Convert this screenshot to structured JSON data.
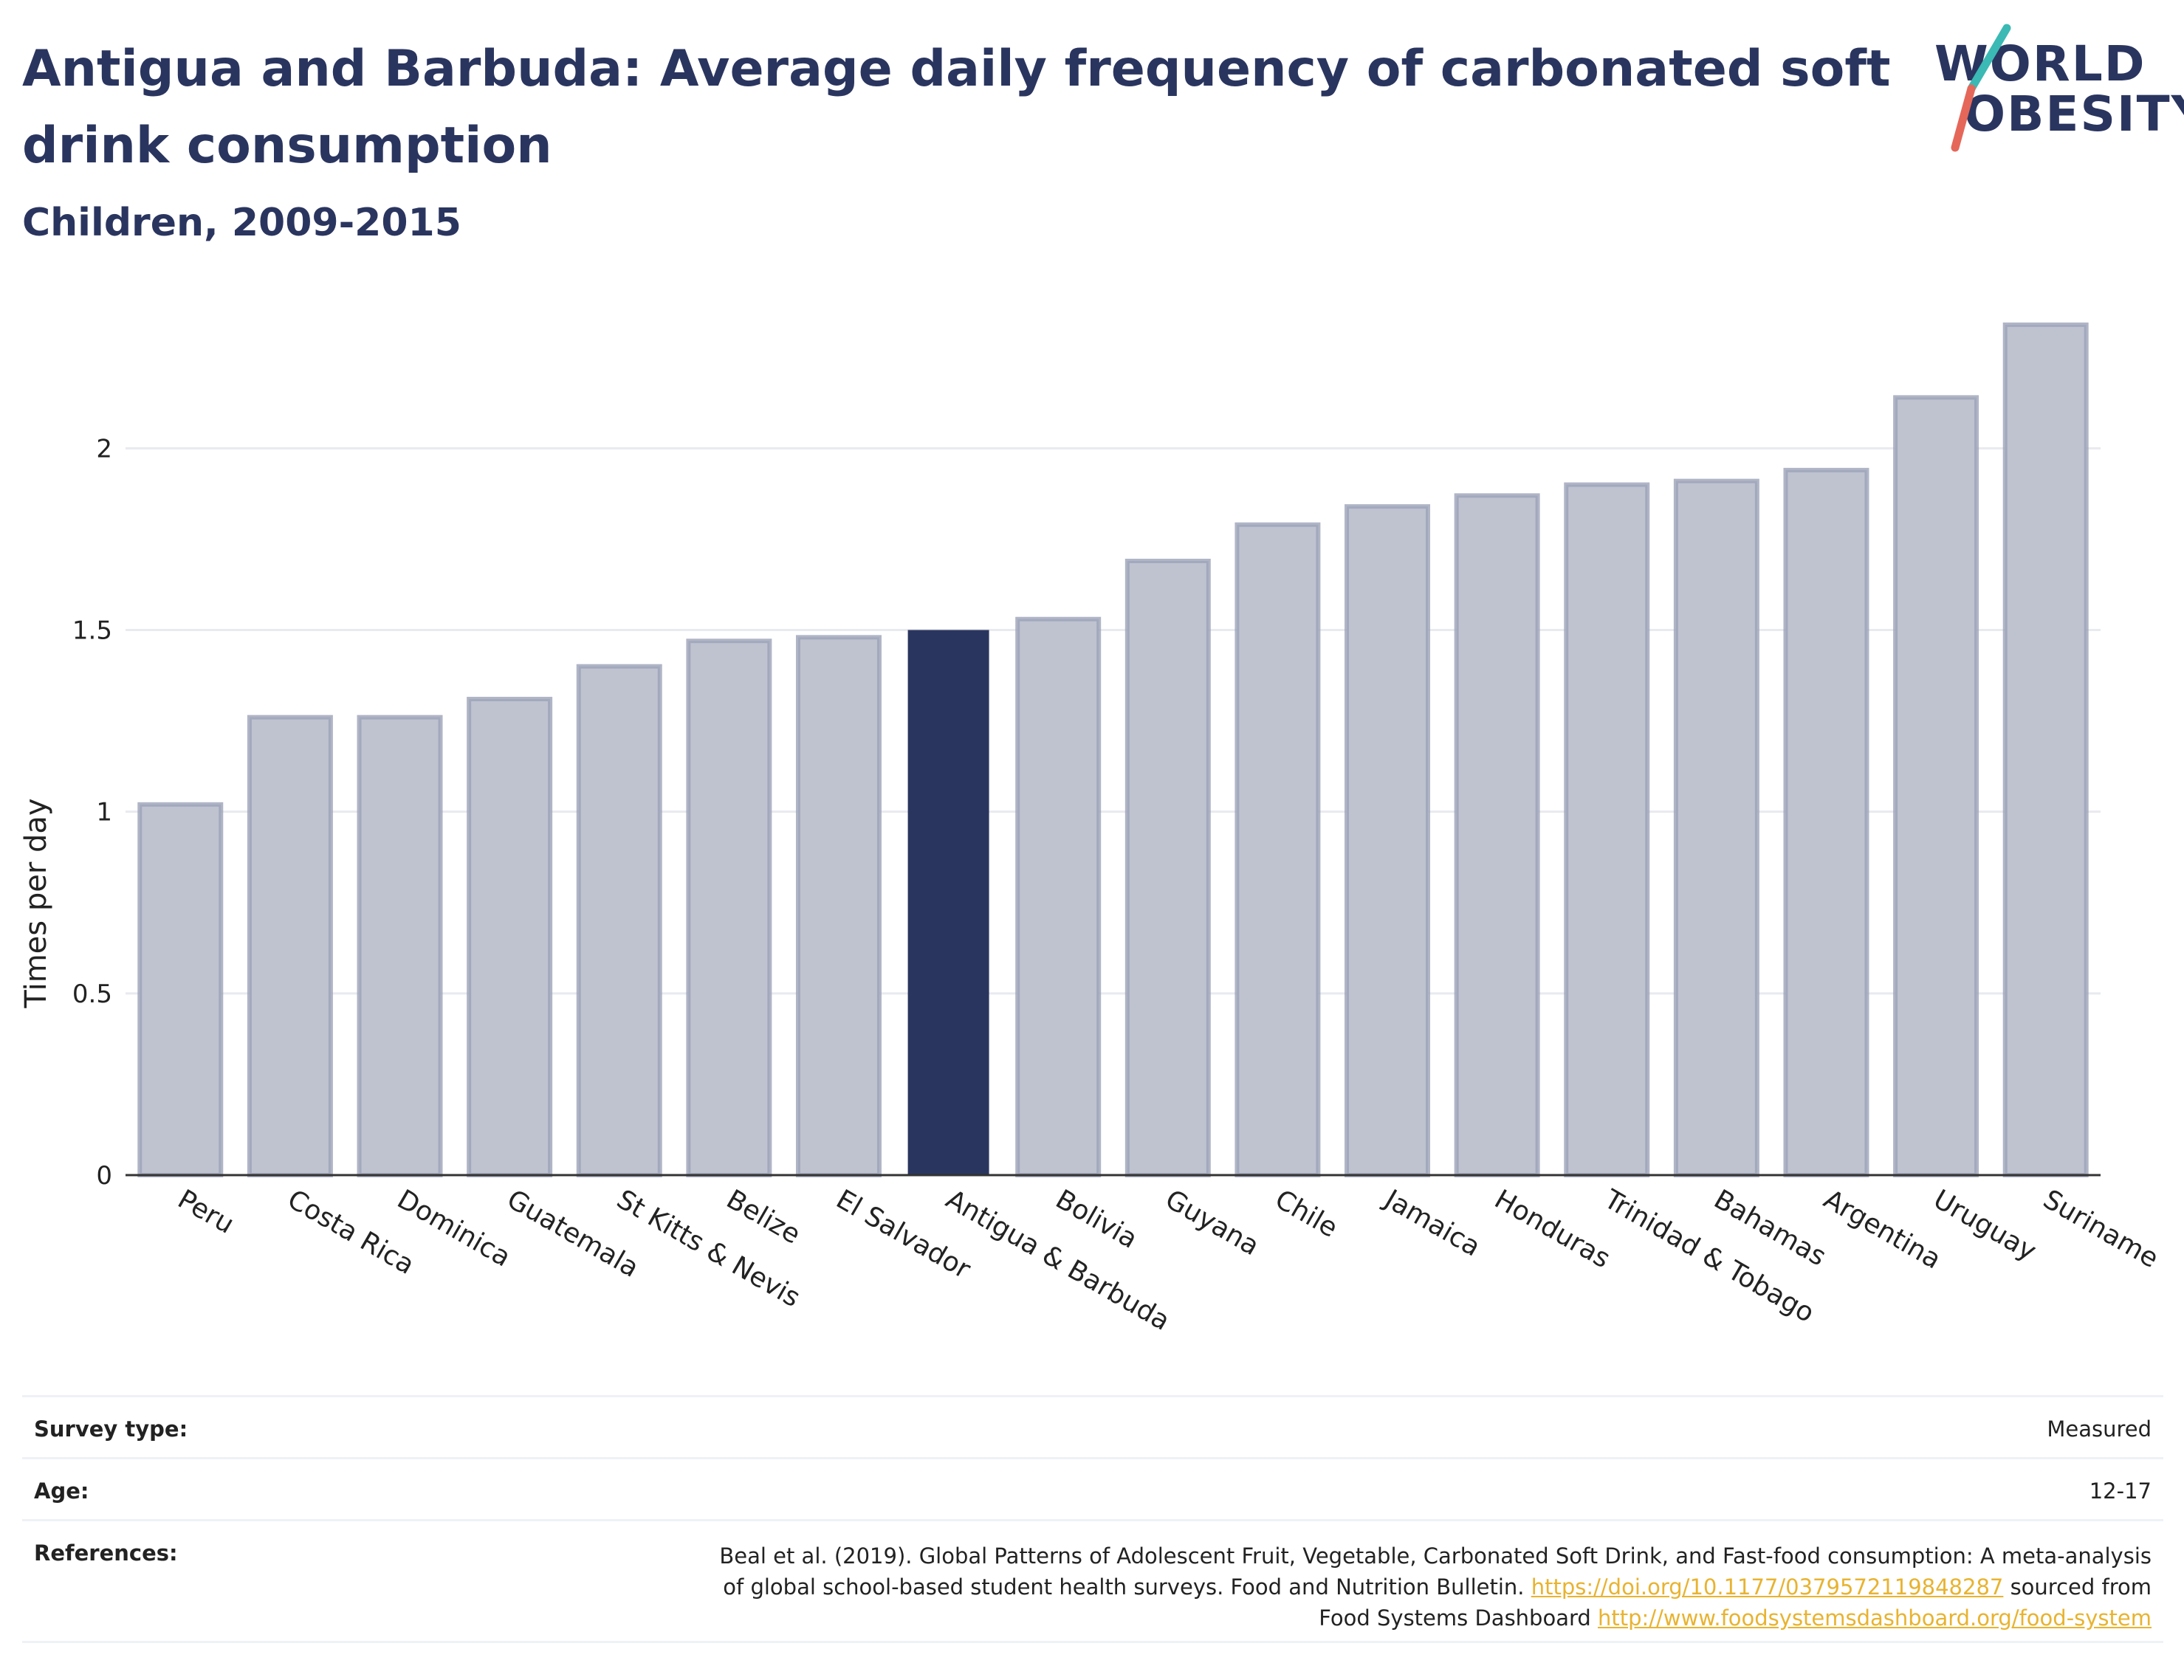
{
  "header": {
    "title": "Antigua and Barbuda: Average daily frequency of carbonated soft drink consumption",
    "subtitle": "Children, 2009-2015"
  },
  "logo": {
    "line1": "WORLD",
    "line2": "OBESITY",
    "accent_teal": "#3bb9b4",
    "accent_red": "#e5675a"
  },
  "colors": {
    "bar": "#bfc3d0",
    "bar_edge": "#9ca2b8",
    "highlight": "#2a355f",
    "grid": "#e8eaef",
    "axis": "#333333"
  },
  "chart_data": {
    "type": "bar",
    "ylabel": "Times per day",
    "xlabel": "",
    "ylim": [
      0,
      2.35
    ],
    "yticks": [
      0,
      0.5,
      1,
      1.5,
      2
    ],
    "ytick_labels": [
      "0",
      "0.5",
      "1",
      "1.5",
      "2"
    ],
    "grid": true,
    "highlight": "Antigua & Barbuda",
    "categories": [
      "Peru",
      "Costa Rica",
      "Dominica",
      "Guatemala",
      "St Kitts & Nevis",
      "Belize",
      "El Salvador",
      "Antigua & Barbuda",
      "Bolivia",
      "Guyana",
      "Chile",
      "Jamaica",
      "Honduras",
      "Trinidad & Tobago",
      "Bahamas",
      "Argentina",
      "Uruguay",
      "Suriname"
    ],
    "values": [
      1.02,
      1.26,
      1.26,
      1.31,
      1.4,
      1.47,
      1.48,
      1.5,
      1.53,
      1.69,
      1.79,
      1.84,
      1.87,
      1.9,
      1.91,
      1.94,
      2.14,
      2.34
    ]
  },
  "info": {
    "survey_label": "Survey type:",
    "survey_value": "Measured",
    "age_label": "Age:",
    "age_value": "12-17",
    "refs_label": "References:",
    "refs_line1": "Beal et al. (2019). Global Patterns of Adolescent Fruit, Vegetable, Carbonated Soft Drink, and Fast-food consumption: A meta-analysis",
    "refs_line2_a": "of global school-based student health surveys. Food and Nutrition Bulletin. ",
    "refs_link1": "https://doi.org/10.1177/0379572119848287",
    "refs_line2_b": " sourced from",
    "refs_line3_a": "Food Systems Dashboard ",
    "refs_link2": "http://www.foodsystemsdashboard.org/food-system"
  }
}
